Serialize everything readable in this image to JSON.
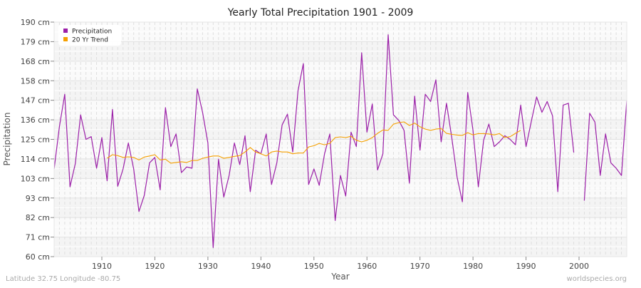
{
  "chart_data": {
    "type": "line",
    "title": "Yearly Total Precipitation 1901 - 2009",
    "xlabel": "Year",
    "ylabel": "Precipitation",
    "xlim": [
      1901,
      2009
    ],
    "ylim": [
      60,
      190
    ],
    "x_ticks": [
      1910,
      1920,
      1930,
      1940,
      1950,
      1960,
      1970,
      1980,
      1990,
      2000
    ],
    "y_ticks": [
      60,
      70.83,
      81.67,
      92.5,
      103.33,
      114.17,
      125,
      135.83,
      146.67,
      157.5,
      168.33,
      179.17,
      190
    ],
    "y_tick_labels": [
      "60 cm",
      "71 cm",
      "82 cm",
      "93 cm",
      "103 cm",
      "114 cm",
      "125 cm",
      "136 cm",
      "147 cm",
      "158 cm",
      "168 cm",
      "179 cm",
      "190 cm"
    ],
    "grid": true,
    "legend_position": "top-left",
    "series": [
      {
        "name": "Precipitation",
        "color": "#9b1fa8",
        "x_start": 1901,
        "values": [
          108.6,
          132,
          150,
          98.7,
          111.7,
          138.6,
          125,
          126.5,
          109,
          126,
          102,
          141.6,
          99,
          108.6,
          123,
          108.6,
          85,
          94,
          112,
          115,
          97,
          142.6,
          121,
          128,
          106.6,
          109.7,
          109,
          153,
          140,
          123,
          65,
          114,
          93,
          105,
          123,
          111,
          127,
          96,
          119,
          117,
          128,
          100,
          112,
          133,
          139,
          118,
          152,
          167,
          100,
          108.6,
          99.5,
          117,
          128,
          80,
          105,
          93.6,
          129,
          121,
          173,
          129,
          144.6,
          108,
          117,
          183,
          138.6,
          135.5,
          130,
          100.7,
          149,
          119,
          150,
          146,
          158,
          123.6,
          145,
          126,
          104,
          90.4,
          151,
          130,
          98.7,
          124.5,
          133.5,
          121,
          123.6,
          127,
          125,
          122,
          144,
          121,
          135,
          148.5,
          140,
          146,
          138,
          96,
          144,
          145,
          117.7,
          null,
          91,
          139.5,
          134.6,
          105,
          128,
          112,
          109,
          105,
          146.5
        ]
      },
      {
        "name": "20 Yr Trend",
        "color": "#f5a000",
        "x_start": 1911,
        "values": [
          114.5,
          116.5,
          116,
          115,
          115.3,
          115,
          113.6,
          115.2,
          115.8,
          116.5,
          113.6,
          114,
          111.8,
          112.2,
          112.6,
          112.2,
          113.3,
          113.3,
          114.5,
          115.2,
          115.8,
          115.8,
          114.5,
          115,
          115.6,
          116,
          118,
          120.5,
          118,
          117,
          115.8,
          118,
          118.5,
          118,
          118,
          117,
          117.4,
          117.4,
          120.8,
          121.5,
          122.8,
          122,
          122.8,
          126,
          126.4,
          126,
          126.7,
          124.5,
          123.6,
          124.5,
          126,
          128.3,
          130.2,
          130,
          133.4,
          134.3,
          134.7,
          132.7,
          134,
          132,
          130.7,
          130,
          130.7,
          131,
          128.3,
          127.8,
          127.4,
          127.2,
          128.7,
          127.5,
          128.2,
          128.2,
          128,
          127.5,
          128.2,
          126,
          126.5,
          128.3,
          130
        ]
      }
    ]
  },
  "footer": {
    "location": "Latitude 32.75 Longitude -80.75",
    "source": "worldspecies.org"
  }
}
